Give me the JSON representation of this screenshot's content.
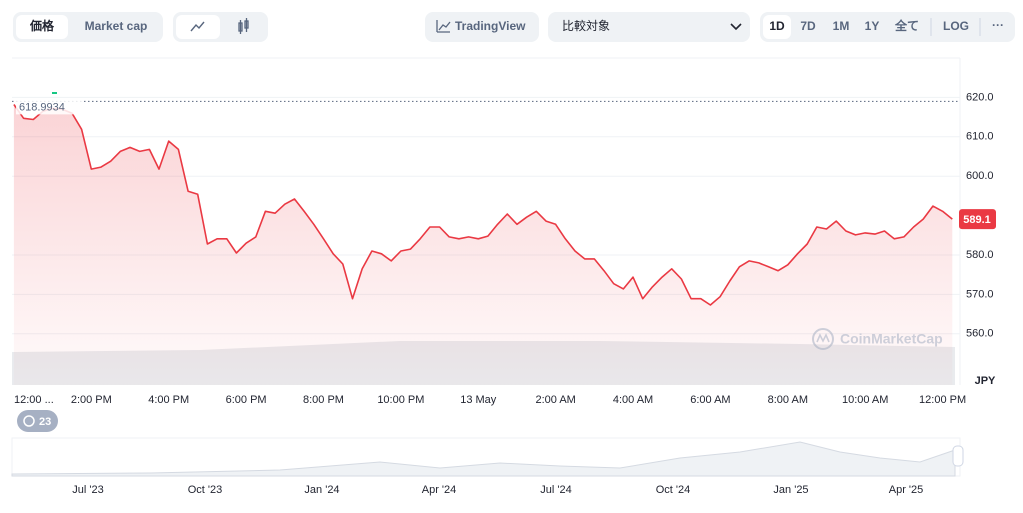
{
  "toolbar": {
    "price": "価格",
    "market_cap": "Market cap",
    "tradingview": "TradingView",
    "compare": "比較対象",
    "ranges": [
      "1D",
      "7D",
      "1M",
      "1Y",
      "全て"
    ],
    "log": "LOG",
    "more": "···"
  },
  "chart_data": {
    "type": "line",
    "color": "#ea3943",
    "values": [
      618.2,
      614.7,
      614.4,
      616.5,
      617.2,
      617.0,
      616.0,
      611.9,
      601.8,
      602.3,
      603.8,
      606.3,
      607.3,
      606.3,
      606.8,
      601.8,
      608.9,
      606.8,
      596.2,
      595.4,
      582.8,
      584.1,
      584.1,
      580.5,
      583.0,
      584.6,
      591.1,
      590.6,
      592.9,
      594.2,
      591.1,
      587.8,
      584.1,
      580.3,
      577.7,
      568.9,
      576.5,
      581.0,
      580.3,
      578.5,
      581.0,
      581.5,
      584.1,
      587.1,
      587.1,
      584.6,
      584.1,
      584.6,
      584.1,
      584.8,
      587.8,
      590.4,
      587.8,
      589.6,
      591.1,
      588.6,
      587.8,
      584.1,
      581.0,
      579.0,
      579.0,
      576.0,
      572.7,
      571.4,
      574.4,
      568.9,
      571.9,
      574.4,
      576.5,
      573.9,
      568.9,
      568.9,
      567.3,
      569.4,
      573.4,
      577.0,
      578.5,
      578.0,
      577.0,
      576.0,
      577.5,
      580.3,
      582.8,
      587.1,
      586.6,
      588.6,
      586.1,
      585.1,
      585.6,
      585.3,
      586.1,
      584.1,
      584.6,
      587.1,
      589.1,
      592.4,
      591.1,
      589.1
    ],
    "high": 618.9934,
    "xlim": [
      -0.2,
      97.8
    ],
    "xticks": [
      {
        "value": 0,
        "label": "12:00 ..."
      },
      {
        "value": 8,
        "label": "2:00 PM"
      },
      {
        "value": 16,
        "label": "4:00 PM"
      },
      {
        "value": 24,
        "label": "6:00 PM"
      },
      {
        "value": 32,
        "label": "8:00 PM"
      },
      {
        "value": 40,
        "label": "10:00 PM"
      },
      {
        "value": 48,
        "label": "13 May"
      },
      {
        "value": 56,
        "label": "2:00 AM"
      },
      {
        "value": 64,
        "label": "4:00 AM"
      },
      {
        "value": 72,
        "label": "6:00 AM"
      },
      {
        "value": 80,
        "label": "8:00 AM"
      },
      {
        "value": 88,
        "label": "10:00 AM"
      },
      {
        "value": 96,
        "label": "12:00 PM"
      }
    ],
    "ylim": [
      547,
      630
    ],
    "yticks": [
      {
        "value": 560,
        "label": "560.0"
      },
      {
        "value": 570,
        "label": "570.0"
      },
      {
        "value": 580,
        "label": "580.0"
      },
      {
        "value": 600,
        "label": "600.0"
      },
      {
        "value": 610,
        "label": "610.0"
      },
      {
        "value": 620,
        "label": "620.0"
      }
    ],
    "grid": true,
    "y_unit": "JPY"
  },
  "watermark": "CoinMarketCap",
  "badge": 23,
  "navigator": {
    "labels": [
      "Jul '23",
      "Oct '23",
      "Jan '24",
      "Apr '24",
      "Jul '24",
      "Oct '24",
      "Jan '25",
      "Apr '25"
    ]
  }
}
